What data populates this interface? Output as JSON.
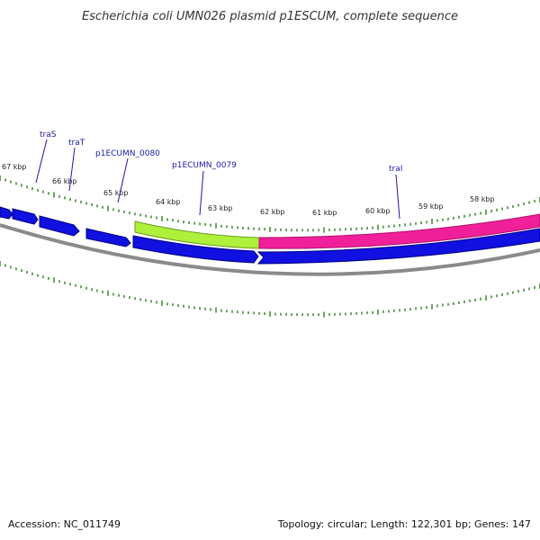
{
  "title": "Escherichia coli UMN026 plasmid p1ESCUM, complete sequence",
  "footer": {
    "accession": "Accession: NC_011749",
    "summary": "Topology: circular; Length: 122,301 bp; Genes: 147"
  },
  "tick_labels": [
    "67 kbp",
    "66 kbp",
    "65 kbp",
    "64 kbp",
    "63 kbp",
    "62 kbp",
    "61 kbp",
    "60 kbp",
    "59 kbp",
    "58 kbp"
  ],
  "gene_labels": [
    "traS",
    "traT",
    "p1ECUMN_0080",
    "p1ECUMN_0079",
    "traI"
  ],
  "colors": {
    "cds": "#1010e0",
    "highlight_green": "#aef03a",
    "highlight_pink": "#f0209a",
    "backbone": "#7a7a7a",
    "ticks": "#2e7d1e",
    "label_line": "#1a1aa8"
  }
}
